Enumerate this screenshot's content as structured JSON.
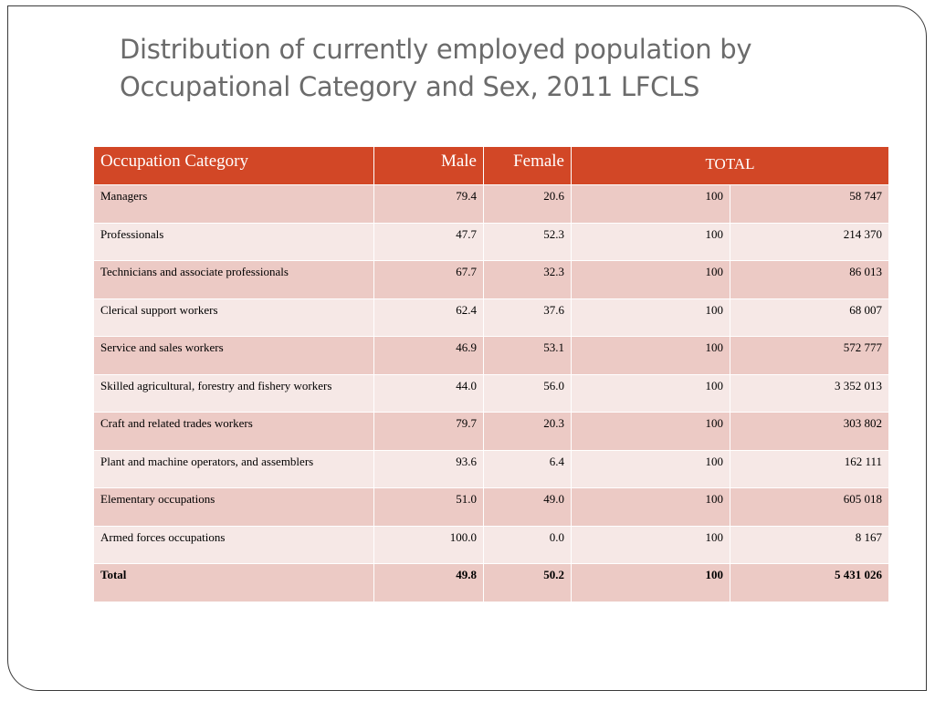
{
  "slide": {
    "title_line1": "Distribution of currently employed population by",
    "title_line2": "Occupational Category and Sex, 2011 LFCLS"
  },
  "table": {
    "headers": {
      "occupation": "Occupation Category",
      "male": "Male",
      "female": "Female",
      "total": "TOTAL"
    },
    "rows": [
      {
        "category": " Managers",
        "male": "79.4",
        "female": "20.6",
        "pct": "100",
        "count": "58 747"
      },
      {
        "category": "Professionals",
        "male": "47.7",
        "female": "52.3",
        "pct": "100",
        "count": "214 370"
      },
      {
        "category": "Technicians and associate professionals",
        "male": "67.7",
        "female": "32.3",
        "pct": "100",
        "count": "86 013"
      },
      {
        "category": "Clerical support workers",
        "male": "62.4",
        "female": "37.6",
        "pct": "100",
        "count": "68 007"
      },
      {
        "category": "Service and sales workers",
        "male": "46.9",
        "female": "53.1",
        "pct": "100",
        "count": "572 777"
      },
      {
        "category": " Skilled agricultural, forestry and fishery workers",
        "male": "44.0",
        "female": "56.0",
        "pct": "100",
        "count": "3 352 013"
      },
      {
        "category": "Craft and related trades workers",
        "male": "79.7",
        "female": "20.3",
        "pct": "100",
        "count": "303 802"
      },
      {
        "category": "Plant and machine operators, and assemblers",
        "male": "93.6",
        "female": "6.4",
        "pct": "100",
        "count": "162 111"
      },
      {
        "category": "Elementary occupations",
        "male": "51.0",
        "female": "49.0",
        "pct": "100",
        "count": "605 018"
      },
      {
        "category": "Armed forces occupations",
        "male": "100.0",
        "female": "0.0",
        "pct": "100",
        "count": "8 167"
      },
      {
        "category": "Total",
        "male": "49.8",
        "female": "50.2",
        "pct": "100",
        "count": "5 431 026"
      }
    ]
  }
}
